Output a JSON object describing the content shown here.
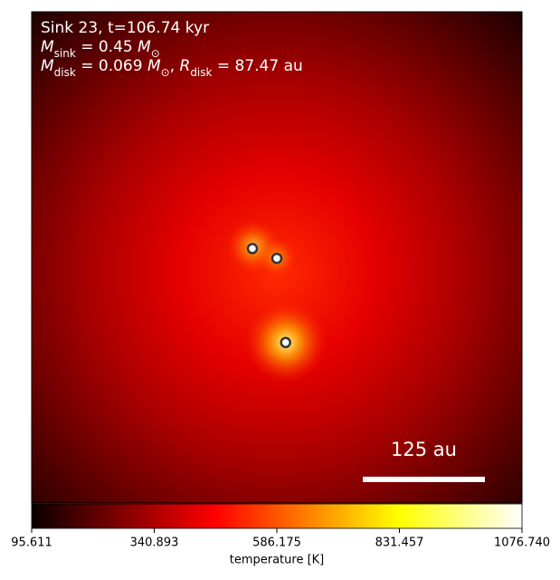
{
  "chart_data": {
    "type": "image",
    "title_lines": [
      [
        {
          "text": "Sink 23, t=106.74 kyr"
        }
      ],
      [
        {
          "text": "M",
          "italic": true
        },
        {
          "text": "sink",
          "sub": true
        },
        {
          "text": " = 0.45 "
        },
        {
          "text": "M",
          "italic": true
        },
        {
          "text": "⊙",
          "sub": true
        }
      ],
      [
        {
          "text": "M",
          "italic": true
        },
        {
          "text": "disk",
          "sub": true
        },
        {
          "text": " = 0.069 "
        },
        {
          "text": "M",
          "italic": true
        },
        {
          "text": "⊙",
          "sub": true
        },
        {
          "text": ", "
        },
        {
          "text": "R",
          "italic": true
        },
        {
          "text": "disk",
          "sub": true
        },
        {
          "text": " = 87.47 au"
        }
      ]
    ],
    "xlim": [
      -251,
      251
    ],
    "ylim": [
      -251,
      251
    ],
    "sinks": {
      "x": [
        -25,
        0,
        9
      ],
      "y": [
        9,
        -1,
        -87
      ]
    },
    "scalebar": {
      "label": "125 au",
      "length": 125
    },
    "colorbar": {
      "label": "temperature [K]",
      "clim": [
        95.611,
        1076.74
      ],
      "ticks": [
        95.611,
        340.893,
        586.175,
        831.457,
        {
          "value": 1076.74,
          "label": "1076.740"
        }
      ]
    }
  }
}
